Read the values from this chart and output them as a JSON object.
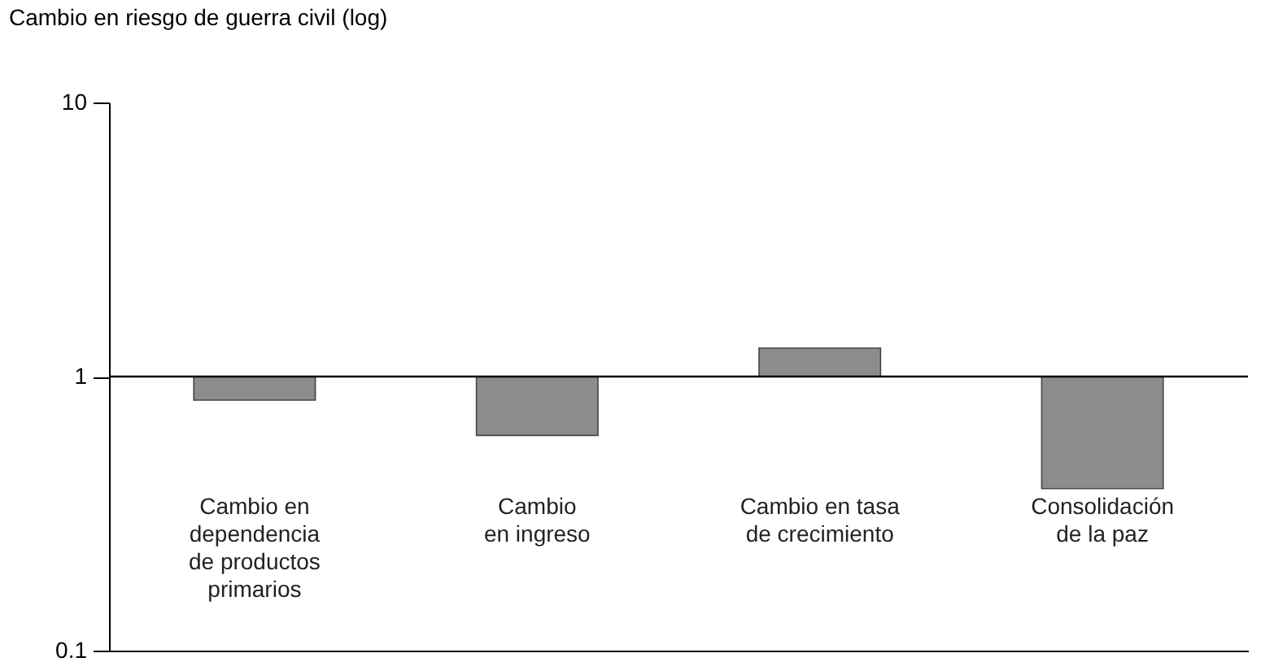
{
  "chart_data": {
    "type": "bar",
    "ylabel": "Cambio en riesgo de guerra civil (log)",
    "categories": [
      "Cambio en\ndependencia\nde productos\nprimarios",
      "Cambio\nen ingreso",
      "Cambio en tasa\nde crecimiento",
      "Consolidación\nde la paz"
    ],
    "base": [
      1,
      1,
      1,
      1
    ],
    "values": [
      -0.18,
      -0.39,
      0.27,
      -0.61
    ],
    "color": "#8c8c8c",
    "log": true,
    "ylim": [
      0.1,
      10
    ],
    "yticks": [
      0.1,
      1,
      10
    ],
    "ref_lines": [
      {
        "axis": "y",
        "value": 1,
        "color": "#000000"
      }
    ],
    "grid": false,
    "tick_labels": "y"
  }
}
